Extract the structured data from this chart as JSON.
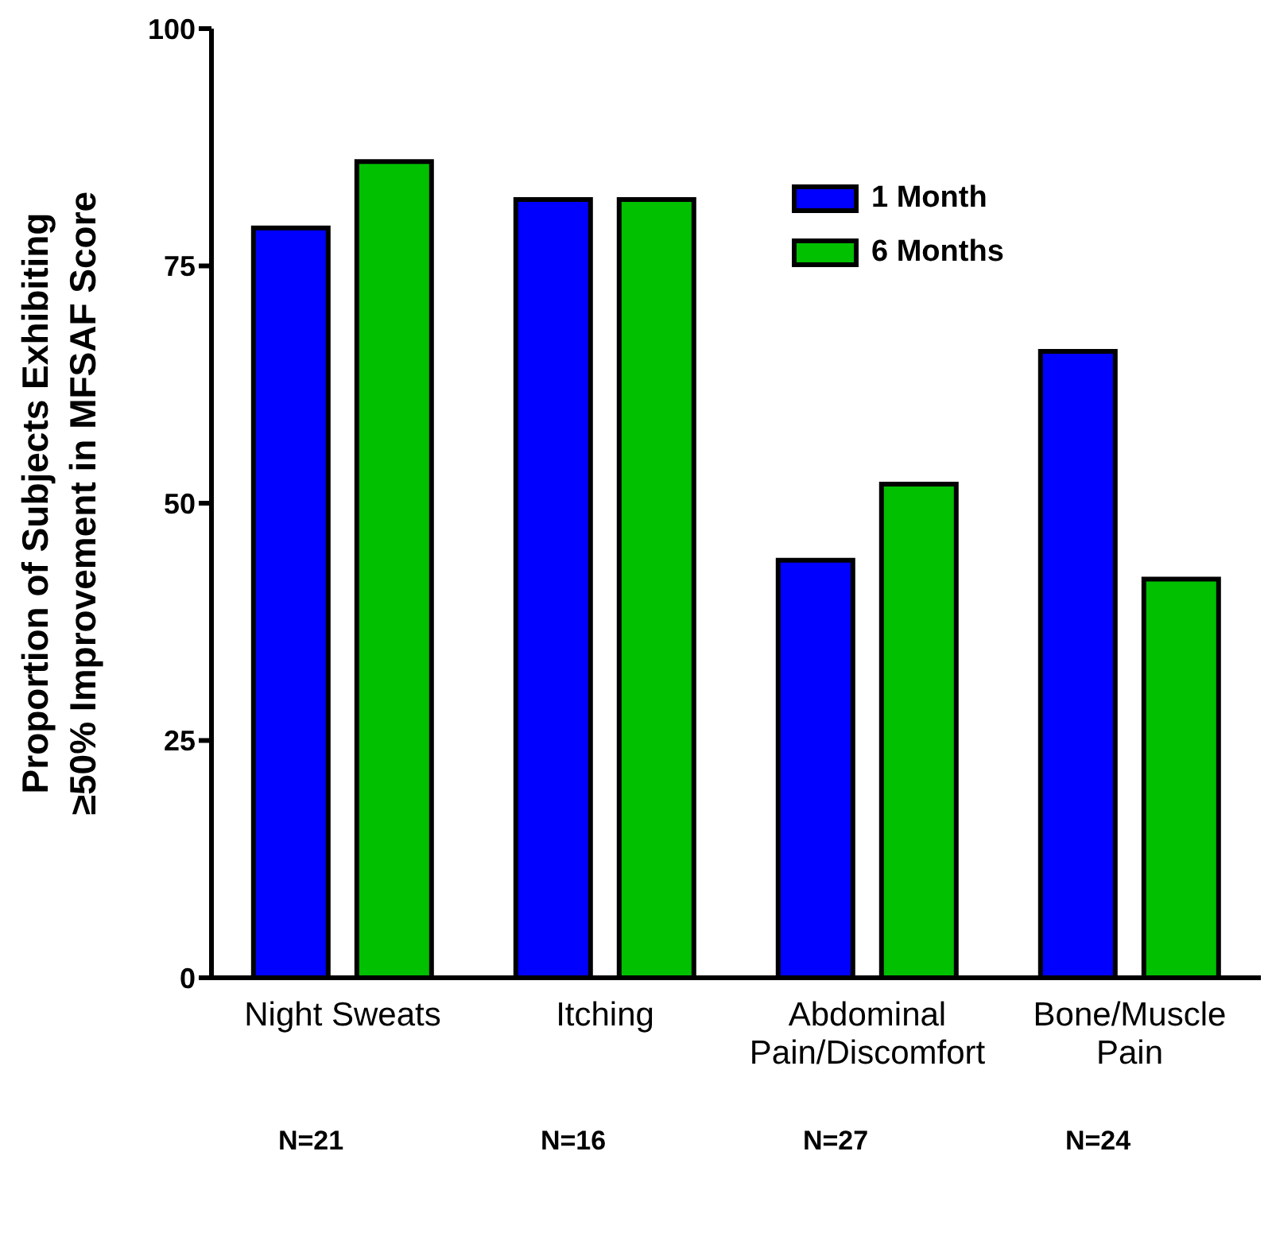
{
  "chart_data": {
    "type": "bar",
    "ylabel": "Proportion of Subjects Exhibiting ≥50% Improvement in MFSAF Score",
    "categories": [
      "Night Sweats",
      "Itching",
      "Abdominal Pain/Discomfort",
      "Bone/Muscle Pain"
    ],
    "series": [
      {
        "name": "1 Month",
        "color": "#0000ff",
        "values": [
          79,
          82,
          44,
          66
        ]
      },
      {
        "name": "6 Months",
        "color": "#00c000",
        "values": [
          86,
          82,
          52,
          42
        ]
      }
    ],
    "ylim": [
      0,
      100
    ],
    "yticks": [
      0,
      25,
      50,
      75,
      100
    ],
    "grid": false,
    "legend": "top right",
    "annotations": [
      "N=21",
      "N=16",
      "N=27",
      "N=24"
    ]
  }
}
